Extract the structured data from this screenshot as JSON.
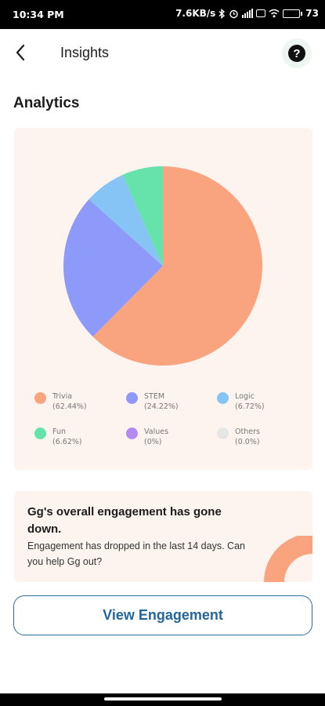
{
  "status_bar": {
    "time": "10:34 PM",
    "net_speed": "7.6KB/s",
    "battery_text": "73",
    "battery_level": 0.73,
    "icons": [
      "bluetooth-icon",
      "alarm-icon",
      "signal-icon",
      "volte-icon",
      "wifi-icon",
      "battery-icon"
    ]
  },
  "header": {
    "title": "Insights",
    "back_icon": "chevron-left-icon",
    "help_icon": "question-mark-icon",
    "help_glyph": "?"
  },
  "analytics": {
    "section_title": "Analytics"
  },
  "chart_data": {
    "type": "pie",
    "slices": [
      {
        "name": "Trivia",
        "pct_label": "(62.44%)",
        "value": 62.44,
        "color": "#f9a47e"
      },
      {
        "name": "STEM",
        "pct_label": "(24.22%)",
        "value": 24.22,
        "color": "#8e9af9"
      },
      {
        "name": "Logic",
        "pct_label": "(6.72%)",
        "value": 6.72,
        "color": "#86c4f6"
      },
      {
        "name": "Fun",
        "pct_label": "(6.62%)",
        "value": 6.62,
        "color": "#66e2ab"
      },
      {
        "name": "Values",
        "pct_label": "(0%)",
        "value": 0,
        "color": "#b38af2"
      },
      {
        "name": "Others",
        "pct_label": "(0.0%)",
        "value": 0,
        "color": "#e6e6e6"
      }
    ],
    "legend_placement": "bottom"
  },
  "engagement_card": {
    "heading": "Gg's overall engagement has gone down.",
    "body": "Engagement has dropped in the last 14 days. Can you help Gg out?",
    "accent_color": "#f9a47e"
  },
  "cta": {
    "label": "View Engagement"
  }
}
